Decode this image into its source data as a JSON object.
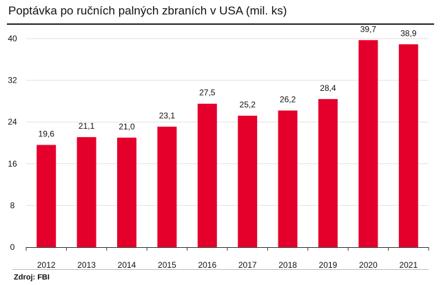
{
  "chart_data": {
    "type": "bar",
    "title": "Poptávka po ručních palných zbraních v USA (mil. ks)",
    "categories": [
      "2012",
      "2013",
      "2014",
      "2015",
      "2016",
      "2017",
      "2018",
      "2019",
      "2020",
      "2021"
    ],
    "values": [
      19.6,
      21.1,
      21.0,
      23.1,
      27.5,
      25.2,
      26.2,
      28.4,
      39.7,
      38.9
    ],
    "data_labels": [
      "19,6",
      "21,1",
      "21,0",
      "23,1",
      "27,5",
      "25,2",
      "26,2",
      "28,4",
      "39,7",
      "38,9"
    ],
    "yticks": [
      0,
      8,
      16,
      24,
      32,
      40
    ],
    "ylim": [
      0,
      40
    ],
    "grid": true,
    "bar_color": "#e4002b",
    "source": "Zdroj: FBI"
  }
}
